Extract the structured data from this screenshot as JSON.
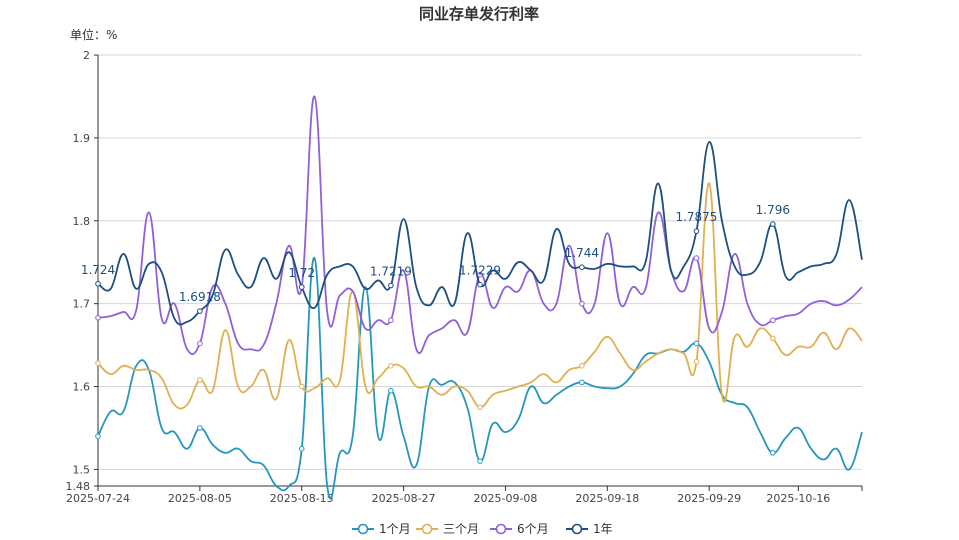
{
  "chart_data": {
    "type": "line",
    "title": "同业存单发行利率",
    "unit_label": "单位：%",
    "ylim": [
      1.48,
      2
    ],
    "yticks": [
      "1.48",
      "1.5",
      "1.6",
      "1.7",
      "1.8",
      "1.9",
      "2"
    ],
    "x": [
      "2025-07-24",
      "2025-07-25",
      "2025-07-28",
      "2025-07-29",
      "2025-07-30",
      "2025-07-31",
      "2025-08-01",
      "2025-08-04",
      "2025-08-05",
      "2025-08-06",
      "2025-08-07",
      "2025-08-08",
      "2025-08-11",
      "2025-08-12",
      "2025-08-13",
      "2025-08-14",
      "2025-08-15",
      "2025-08-18",
      "2025-08-19",
      "2025-08-20",
      "2025-08-21",
      "2025-08-22",
      "2025-08-25",
      "2025-08-26",
      "2025-08-27",
      "2025-08-28",
      "2025-08-29",
      "2025-09-01",
      "2025-09-02",
      "2025-09-03",
      "2025-09-04",
      "2025-09-05",
      "2025-09-08",
      "2025-09-09",
      "2025-09-10",
      "2025-09-11",
      "2025-09-12",
      "2025-09-15",
      "2025-09-16",
      "2025-09-17",
      "2025-09-18",
      "2025-09-19",
      "2025-09-22",
      "2025-09-23",
      "2025-09-24",
      "2025-09-25",
      "2025-09-26",
      "2025-09-28",
      "2025-09-29",
      "2025-09-30",
      "2025-10-09",
      "2025-10-10",
      "2025-10-13",
      "2025-10-14",
      "2025-10-15",
      "2025-10-16",
      "2025-10-17",
      "2025-10-20",
      "2025-10-21",
      "2025-10-22",
      "2025-10-23"
    ],
    "xticks": [
      "2025-07-24",
      "2025-08-05",
      "2025-08-15",
      "2025-08-27",
      "2025-09-08",
      "2025-09-18",
      "2025-09-29",
      "2025-10-16"
    ],
    "series": [
      {
        "name": "1个月",
        "color": "#2596be",
        "values": [
          1.54,
          1.57,
          1.57,
          1.625,
          1.62,
          1.55,
          1.545,
          1.525,
          1.55,
          1.53,
          1.52,
          1.525,
          1.51,
          1.505,
          1.48,
          1.48,
          1.525,
          1.755,
          1.48,
          1.52,
          1.54,
          1.72,
          1.54,
          1.595,
          1.54,
          1.505,
          1.6,
          1.602,
          1.605,
          1.575,
          1.51,
          1.555,
          1.545,
          1.56,
          1.6,
          1.58,
          1.59,
          1.6,
          1.605,
          1.6,
          1.598,
          1.6,
          1.615,
          1.638,
          1.64,
          1.645,
          1.642,
          1.652,
          1.63,
          1.59,
          1.58,
          1.575,
          1.545,
          1.52,
          1.538,
          1.55,
          1.525,
          1.512,
          1.525,
          1.5,
          1.545
        ]
      },
      {
        "name": "三个月",
        "color": "#e0b050",
        "values": [
          1.628,
          1.615,
          1.625,
          1.62,
          1.62,
          1.61,
          1.578,
          1.578,
          1.608,
          1.595,
          1.668,
          1.6,
          1.6,
          1.62,
          1.585,
          1.656,
          1.6,
          1.598,
          1.61,
          1.608,
          1.715,
          1.6,
          1.61,
          1.625,
          1.622,
          1.6,
          1.6,
          1.59,
          1.6,
          1.595,
          1.575,
          1.59,
          1.595,
          1.6,
          1.605,
          1.615,
          1.605,
          1.62,
          1.625,
          1.642,
          1.66,
          1.64,
          1.62,
          1.63,
          1.64,
          1.645,
          1.64,
          1.63,
          1.845,
          1.59,
          1.66,
          1.648,
          1.67,
          1.658,
          1.638,
          1.648,
          1.648,
          1.665,
          1.645,
          1.67,
          1.655
        ]
      },
      {
        "name": "6个月",
        "color": "#9060d8",
        "values": [
          1.683,
          1.685,
          1.69,
          1.692,
          1.81,
          1.682,
          1.7,
          1.645,
          1.652,
          1.72,
          1.7,
          1.652,
          1.645,
          1.65,
          1.7,
          1.77,
          1.72,
          1.95,
          1.69,
          1.71,
          1.715,
          1.67,
          1.68,
          1.68,
          1.74,
          1.645,
          1.662,
          1.67,
          1.68,
          1.665,
          1.735,
          1.695,
          1.72,
          1.715,
          1.74,
          1.7,
          1.7,
          1.77,
          1.7,
          1.7,
          1.785,
          1.7,
          1.72,
          1.718,
          1.81,
          1.74,
          1.715,
          1.755,
          1.67,
          1.69,
          1.76,
          1.7,
          1.675,
          1.68,
          1.685,
          1.688,
          1.7,
          1.703,
          1.698,
          1.705,
          1.72
        ]
      },
      {
        "name": "1年",
        "color": "#1d4f80",
        "values": [
          1.724,
          1.718,
          1.76,
          1.718,
          1.748,
          1.738,
          1.682,
          1.678,
          1.691,
          1.71,
          1.765,
          1.735,
          1.72,
          1.755,
          1.73,
          1.762,
          1.72,
          1.695,
          1.735,
          1.745,
          1.745,
          1.718,
          1.728,
          1.7219,
          1.802,
          1.72,
          1.698,
          1.72,
          1.7,
          1.785,
          1.7229,
          1.74,
          1.73,
          1.75,
          1.74,
          1.728,
          1.79,
          1.748,
          1.744,
          1.742,
          1.748,
          1.745,
          1.745,
          1.75,
          1.845,
          1.74,
          1.745,
          1.7875,
          1.895,
          1.8,
          1.745,
          1.735,
          1.75,
          1.796,
          1.733,
          1.738,
          1.745,
          1.748,
          1.76,
          1.825,
          1.753
        ]
      }
    ],
    "data_labels": [
      {
        "series": 3,
        "index": 0,
        "text": "1.724"
      },
      {
        "series": 3,
        "index": 8,
        "text": "1.6918"
      },
      {
        "series": 3,
        "index": 16,
        "text": "1.72"
      },
      {
        "series": 3,
        "index": 23,
        "text": "1.7219"
      },
      {
        "series": 3,
        "index": 30,
        "text": "1.7229"
      },
      {
        "series": 3,
        "index": 38,
        "text": "1.744"
      },
      {
        "series": 3,
        "index": 47,
        "text": "1.7875"
      },
      {
        "series": 3,
        "index": 53,
        "text": "1.796"
      }
    ],
    "marker_indices": [
      0,
      8,
      16,
      23,
      30,
      38,
      47,
      53
    ],
    "legend_position": "bottom-center",
    "grid": true
  }
}
